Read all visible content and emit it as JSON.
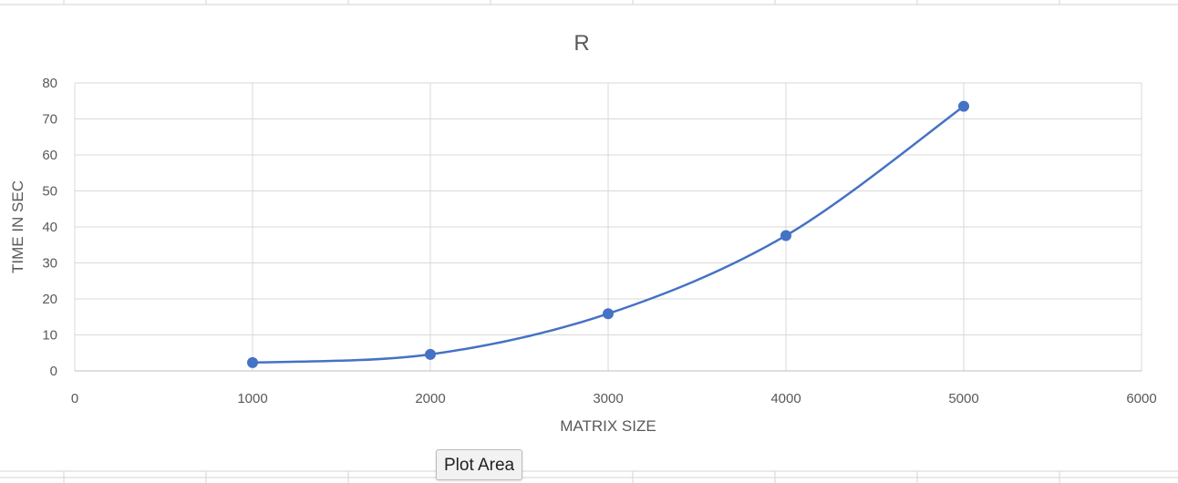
{
  "tooltip": {
    "text": "Plot Area"
  },
  "colors": {
    "series": "#4472c4",
    "grid": "#d9d9d9",
    "text": "#595959"
  },
  "chart_data": {
    "type": "scatter",
    "style": "smoothed lines with markers",
    "title": "R",
    "xlabel": "MATRIX SIZE",
    "ylabel": "TIME IN SEC",
    "xlim": [
      0,
      6000
    ],
    "ylim": [
      0,
      80
    ],
    "xticks": [
      0,
      1000,
      2000,
      3000,
      4000,
      5000,
      6000
    ],
    "yticks": [
      0,
      10,
      20,
      30,
      40,
      50,
      60,
      70,
      80
    ],
    "grid": true,
    "legend": "none",
    "series": [
      {
        "color": "#4472c4",
        "x": [
          1000,
          2000,
          3000,
          4000,
          5000
        ],
        "y": [
          2.3,
          4.6,
          15.9,
          37.6,
          73.5
        ]
      }
    ]
  }
}
